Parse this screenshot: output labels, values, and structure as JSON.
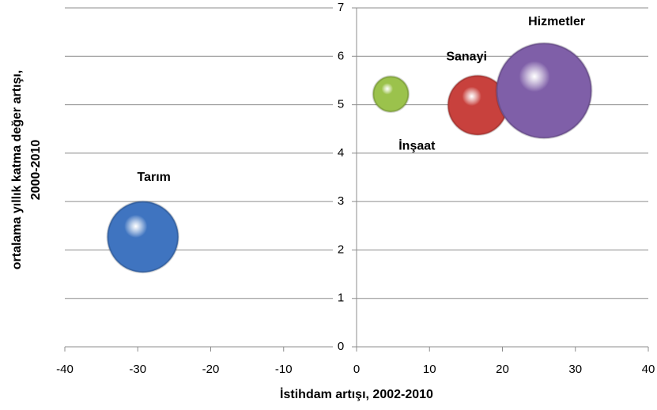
{
  "chart_data": {
    "type": "bubble",
    "xlabel": "İstihdam artışı, 2002-2010",
    "ylabel": [
      "ortalama yıllık katma değer artışı,",
      "2000-2010"
    ],
    "xlim": [
      -40,
      40
    ],
    "xticks": [
      -40,
      -30,
      -20,
      -10,
      0,
      10,
      20,
      30,
      40
    ],
    "ylim": [
      0,
      7
    ],
    "yticks": [
      0,
      1,
      2,
      3,
      4,
      5,
      6,
      7
    ],
    "grid": true,
    "series": [
      {
        "name": "Tarım",
        "color": "#3f74c0",
        "x": [
          -29.3
        ],
        "values": [
          2.27
        ],
        "sizes": [
          20
        ]
      },
      {
        "name": "İnşaat",
        "color": "#9bc24c",
        "x": [
          4.7
        ],
        "values": [
          5.22
        ],
        "sizes": [
          5
        ]
      },
      {
        "name": "Sanayi",
        "color": "#c8413d",
        "x": [
          16.6
        ],
        "values": [
          4.99
        ],
        "sizes": [
          14
        ]
      },
      {
        "name": "Hizmetler",
        "color": "#7f5fa8",
        "x": [
          25.7
        ],
        "values": [
          5.29
        ],
        "sizes": [
          36
        ]
      }
    ]
  }
}
